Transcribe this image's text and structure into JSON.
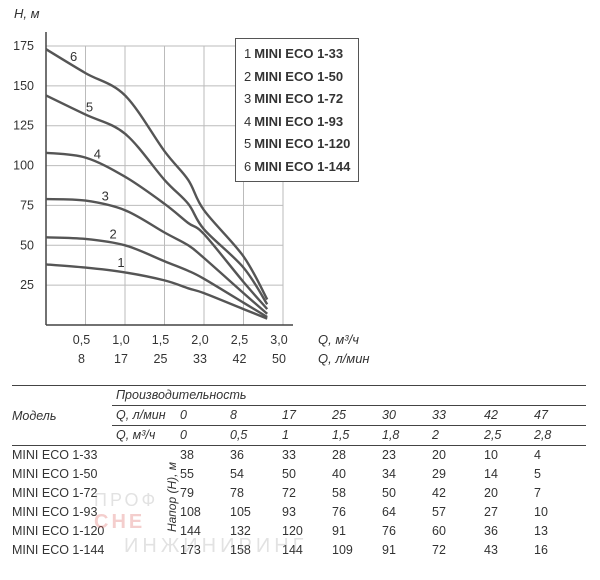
{
  "chart_data": {
    "type": "line",
    "ylabel": "H, м",
    "xlabel": "Q, м³/ч",
    "xlabel2": "Q, л/мин",
    "xlim": [
      0,
      3.0
    ],
    "ylim": [
      0,
      175
    ],
    "x_ticks": [
      "0,5",
      "1,0",
      "1,5",
      "2,0",
      "2,5",
      "3,0"
    ],
    "x_ticks_values": [
      0.5,
      1.0,
      1.5,
      2.0,
      2.5,
      3.0
    ],
    "x2_ticks": [
      "8",
      "17",
      "25",
      "33",
      "42",
      "50"
    ],
    "y_ticks": [
      "175",
      "150",
      "125",
      "100",
      "75",
      "50",
      "25"
    ],
    "y_ticks_values": [
      175,
      150,
      125,
      100,
      75,
      50,
      25
    ],
    "grid": true,
    "legend": [
      {
        "num": "1",
        "label": "MINI ECO 1-33"
      },
      {
        "num": "2",
        "label": "MINI ECO 1-50"
      },
      {
        "num": "3",
        "label": "MINI ECO 1-72"
      },
      {
        "num": "4",
        "label": "MINI ECO 1-93"
      },
      {
        "num": "5",
        "label": "MINI ECO 1-120"
      },
      {
        "num": "6",
        "label": "MINI ECO 1-144"
      }
    ],
    "legend_position": "top-right",
    "series": [
      {
        "name": "1",
        "x": [
          0,
          0.5,
          1.0,
          1.5,
          1.8,
          2.0,
          2.5,
          2.8
        ],
        "y": [
          38,
          36,
          33,
          28,
          23,
          20,
          10,
          4
        ]
      },
      {
        "name": "2",
        "x": [
          0,
          0.5,
          1.0,
          1.5,
          1.8,
          2.0,
          2.5,
          2.8
        ],
        "y": [
          55,
          54,
          50,
          40,
          34,
          29,
          14,
          5
        ]
      },
      {
        "name": "3",
        "x": [
          0,
          0.5,
          1.0,
          1.5,
          1.8,
          2.0,
          2.5,
          2.8
        ],
        "y": [
          79,
          78,
          72,
          58,
          50,
          42,
          20,
          7
        ]
      },
      {
        "name": "4",
        "x": [
          0,
          0.5,
          1.0,
          1.5,
          1.8,
          2.0,
          2.5,
          2.8
        ],
        "y": [
          108,
          105,
          93,
          76,
          64,
          57,
          27,
          10
        ]
      },
      {
        "name": "5",
        "x": [
          0,
          0.5,
          1.0,
          1.5,
          1.8,
          2.0,
          2.5,
          2.8
        ],
        "y": [
          144,
          132,
          120,
          91,
          76,
          60,
          36,
          13
        ]
      },
      {
        "name": "6",
        "x": [
          0,
          0.5,
          1.0,
          1.5,
          1.8,
          2.0,
          2.5,
          2.8
        ],
        "y": [
          173,
          158,
          144,
          109,
          91,
          72,
          43,
          16
        ]
      }
    ],
    "line_color": "#555555",
    "grid_color": "#bbbbbb"
  },
  "table": {
    "header_group": "Производительность",
    "model_header": "Модель",
    "q_lmin_label": "Q, л/мин",
    "q_m3h_label": "Q, м³/ч",
    "q_lmin": [
      "0",
      "8",
      "17",
      "25",
      "30",
      "33",
      "42",
      "47"
    ],
    "q_m3h": [
      "0",
      "0,5",
      "1",
      "1,5",
      "1,8",
      "2",
      "2,5",
      "2,8"
    ],
    "head_label": "Напор (Н), м",
    "rows": [
      {
        "model": "MINI ECO 1-33",
        "values": [
          "38",
          "36",
          "33",
          "28",
          "23",
          "20",
          "10",
          "4"
        ]
      },
      {
        "model": "MINI ECO 1-50",
        "values": [
          "55",
          "54",
          "50",
          "40",
          "34",
          "29",
          "14",
          "5"
        ]
      },
      {
        "model": "MINI ECO 1-72",
        "values": [
          "79",
          "78",
          "72",
          "58",
          "50",
          "42",
          "20",
          "7"
        ]
      },
      {
        "model": "MINI ECO 1-93",
        "values": [
          "108",
          "105",
          "93",
          "76",
          "64",
          "57",
          "27",
          "10"
        ]
      },
      {
        "model": "MINI ECO 1-120",
        "values": [
          "144",
          "132",
          "120",
          "91",
          "76",
          "60",
          "36",
          "13"
        ]
      },
      {
        "model": "MINI ECO 1-144",
        "values": [
          "173",
          "158",
          "144",
          "109",
          "91",
          "72",
          "43",
          "16"
        ]
      }
    ]
  },
  "watermark": {
    "line1": "ПРОФ",
    "line2": "СНЕ",
    "line3": "ИНЖИНИРИНГ",
    "color": "#d9534f"
  }
}
